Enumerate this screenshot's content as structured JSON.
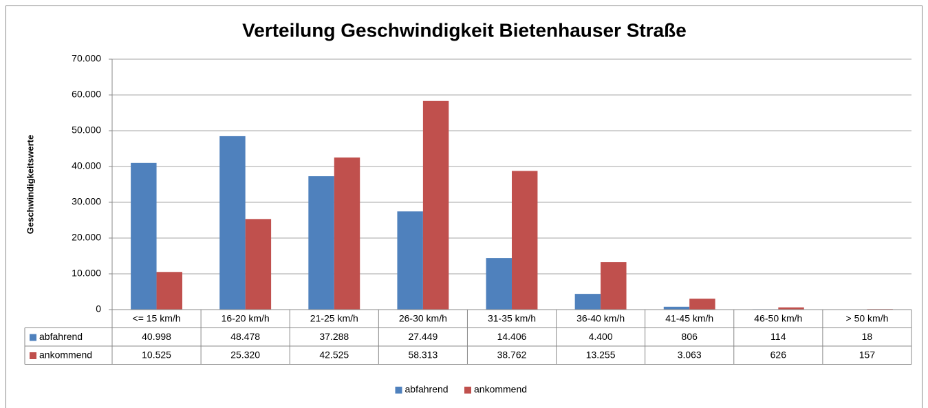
{
  "chart_data": {
    "type": "bar",
    "title": "Verteilung Geschwindigkeit Bietenhauser Straße",
    "y_label": "Geschwindigkeitswerte",
    "categories": [
      "<= 15 km/h",
      "16-20 km/h",
      "21-25 km/h",
      "26-30 km/h",
      "31-35 km/h",
      "36-40 km/h",
      "41-45 km/h",
      "46-50 km/h",
      "> 50 km/h"
    ],
    "series": [
      {
        "name": "abfahrend",
        "color": "#4f81bd",
        "values": [
          40998,
          48478,
          37288,
          27449,
          14406,
          4400,
          806,
          114,
          18
        ],
        "value_labels": [
          "40.998",
          "48.478",
          "37.288",
          "27.449",
          "14.406",
          "4.400",
          "806",
          "114",
          "18"
        ]
      },
      {
        "name": "ankommend",
        "color": "#c0504d",
        "values": [
          10525,
          25320,
          42525,
          58313,
          38762,
          13255,
          3063,
          626,
          157
        ],
        "value_labels": [
          "10.525",
          "25.320",
          "42.525",
          "58.313",
          "38.762",
          "13.255",
          "3.063",
          "626",
          "157"
        ]
      }
    ],
    "ylim": [
      0,
      70000
    ],
    "yticks": [
      0,
      {
        "value": 10000,
        "label": "10.000"
      },
      {
        "value": 20000,
        "label": "20.000"
      },
      {
        "value": 30000,
        "label": "30.000"
      },
      {
        "value": 40000,
        "label": "40.000"
      },
      {
        "value": 50000,
        "label": "50.000"
      },
      {
        "value": 60000,
        "label": "60.000"
      },
      {
        "value": 70000,
        "label": "70.000"
      }
    ],
    "grid": true,
    "legend": "bottom"
  }
}
